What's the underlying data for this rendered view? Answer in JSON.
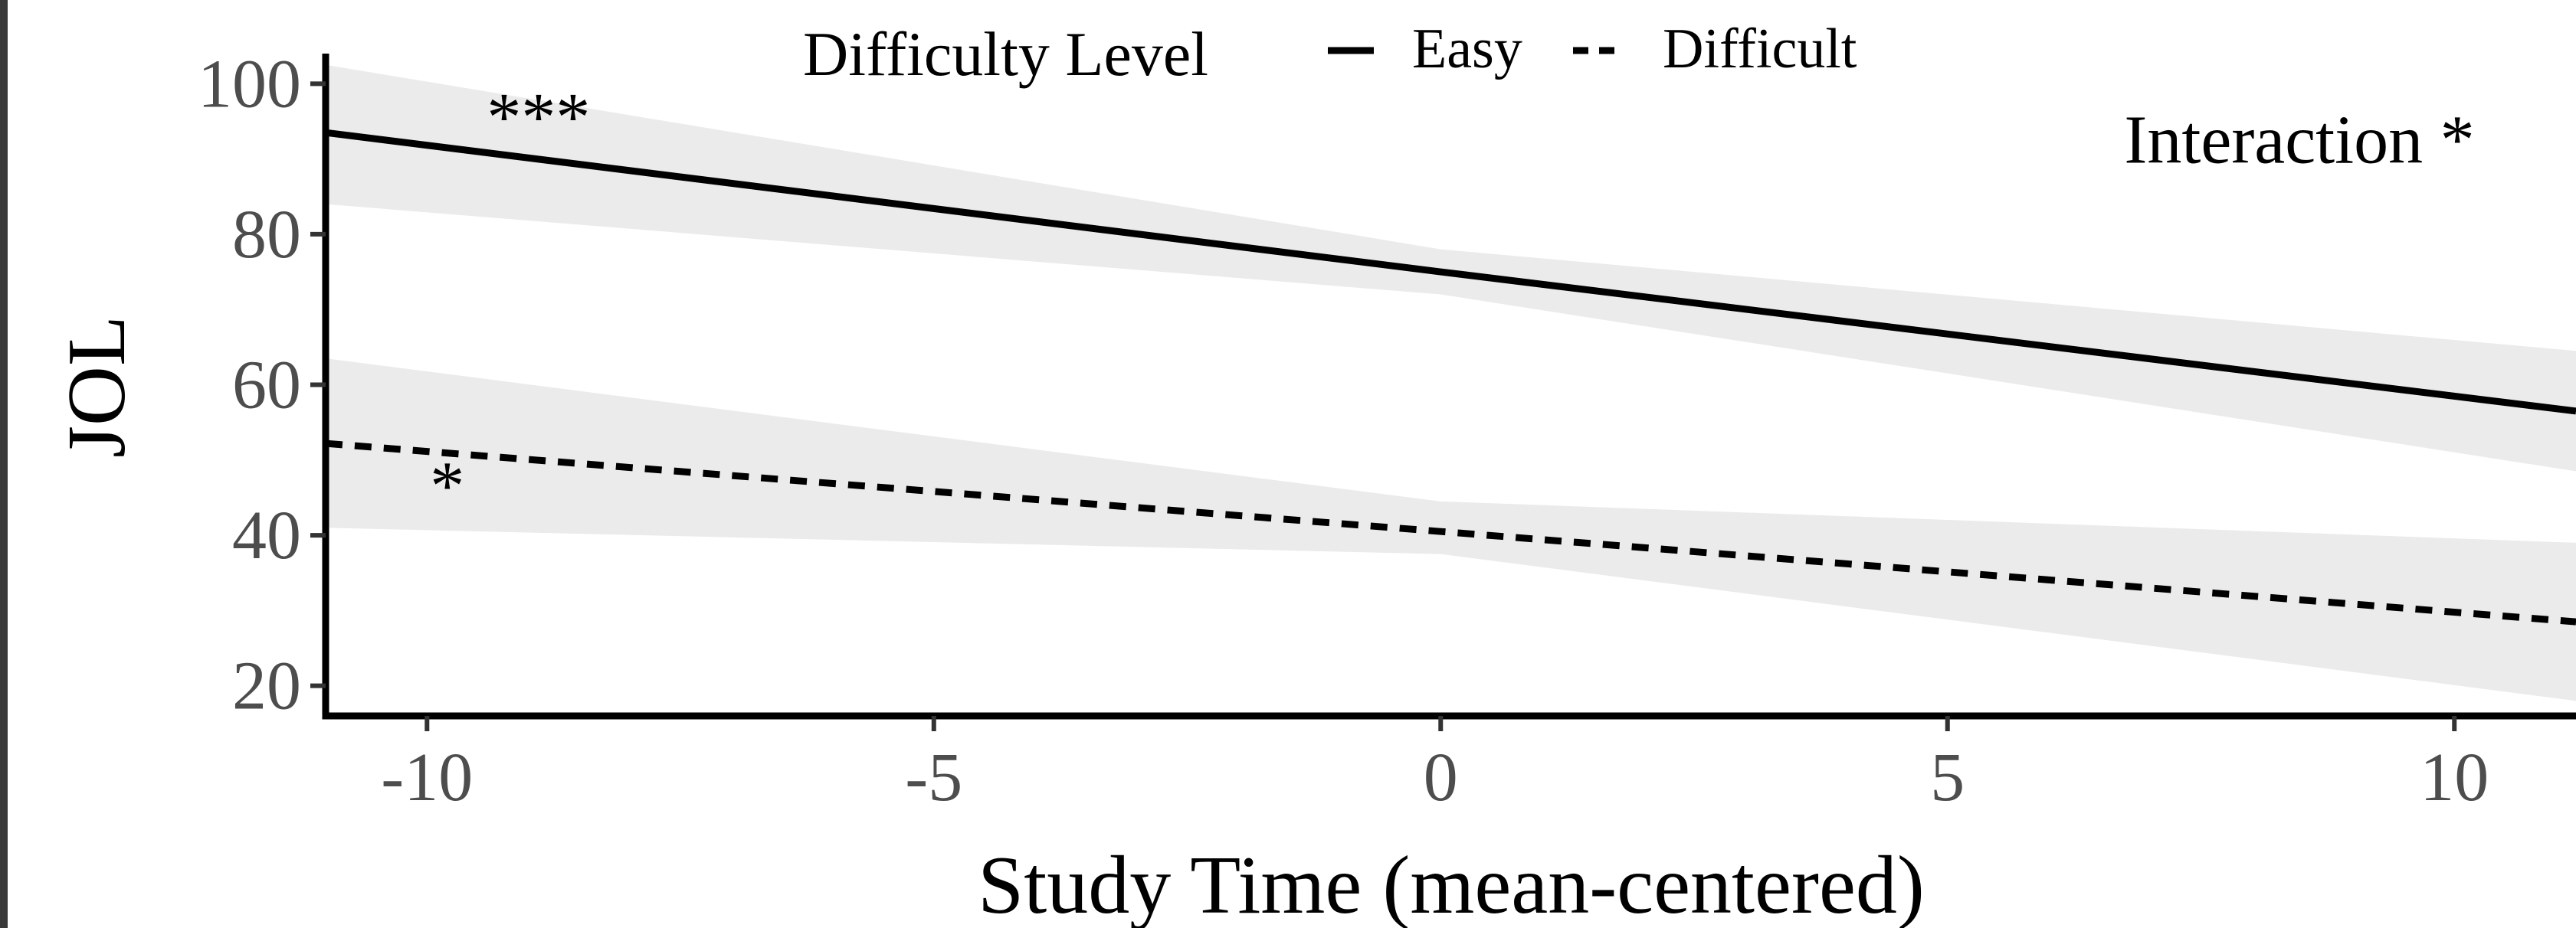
{
  "chart_data": {
    "type": "line",
    "xlabel": "Study Time (mean-centered)",
    "ylabel": "JOL",
    "xlim": [
      -11,
      11.2
    ],
    "ylim": [
      16,
      104
    ],
    "x_ticks": [
      -10,
      -5,
      0,
      5,
      10
    ],
    "x_tick_labels": [
      "-10",
      "-5",
      "0",
      "5",
      "10"
    ],
    "y_ticks": [
      20,
      40,
      60,
      80,
      100
    ],
    "y_tick_labels": [
      "20",
      "40",
      "60",
      "80",
      "100"
    ],
    "grid": false,
    "legend": {
      "title": "Difficulty Level",
      "position": "top",
      "entries": [
        {
          "label": "Easy",
          "linetype": "solid"
        },
        {
          "label": "Difficult",
          "linetype": "dashed"
        }
      ]
    },
    "series": [
      {
        "name": "Easy",
        "linetype": "solid",
        "x": [
          -11,
          0,
          11.2
        ],
        "y": [
          93.5,
          75,
          56.5
        ],
        "ci_upper": [
          102.5,
          78,
          64.5
        ],
        "ci_lower": [
          84,
          72,
          48.5
        ]
      },
      {
        "name": "Difficult",
        "linetype": "dashed",
        "x": [
          -11,
          0,
          11.2
        ],
        "y": [
          52.2,
          40.5,
          28.5
        ],
        "ci_upper": [
          63.5,
          44.5,
          39
        ],
        "ci_lower": [
          41,
          37.5,
          18
        ]
      }
    ],
    "annotations": [
      {
        "text": "***",
        "x": -8.9,
        "y": 92.5,
        "anchor": "middle"
      },
      {
        "text": "*",
        "x": -9.8,
        "y": 43.5,
        "anchor": "middle"
      },
      {
        "text": "Interaction *",
        "x": 10.2,
        "y": 89.5,
        "anchor": "end"
      }
    ],
    "colors": {
      "line": "#000000",
      "ribbon": "#ebebeb",
      "tick_text": "#4d4d4d"
    }
  }
}
